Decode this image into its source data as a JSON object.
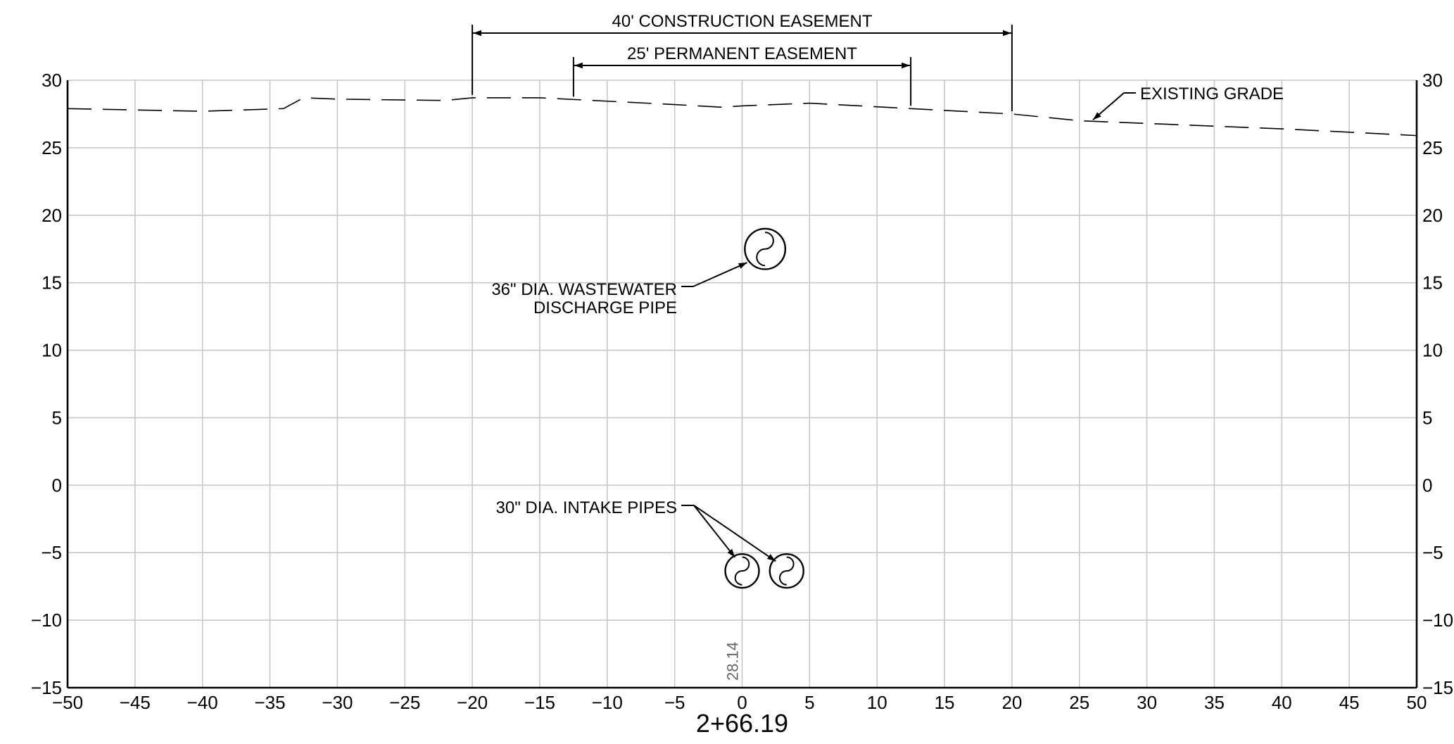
{
  "chart_data": {
    "type": "cross-section",
    "x_range": [
      -50,
      50
    ],
    "y_range": [
      -15,
      30
    ],
    "x_ticks": [
      "−50",
      "−45",
      "−40",
      "−35",
      "−30",
      "−25",
      "−20",
      "−15",
      "−10",
      "−5",
      "0",
      "5",
      "10",
      "15",
      "20",
      "25",
      "30",
      "35",
      "40",
      "45",
      "50"
    ],
    "y_ticks_left": [
      "30",
      "25",
      "20",
      "15",
      "10",
      "5",
      "0",
      "−5",
      "−10",
      "−15"
    ],
    "y_ticks_right": [
      "30",
      "25",
      "20",
      "15",
      "10",
      "5",
      "0",
      "−5",
      "−10",
      "−15"
    ],
    "station_label": "2+66.19",
    "centerline_elevation_label": "28.14",
    "existing_grade": {
      "label": "EXISTING GRADE",
      "points": [
        [
          -50,
          27.9
        ],
        [
          -40,
          27.7
        ],
        [
          -34,
          27.9
        ],
        [
          -32.5,
          28.7
        ],
        [
          -30,
          28.6
        ],
        [
          -22,
          28.5
        ],
        [
          -20,
          28.7
        ],
        [
          -15,
          28.7
        ],
        [
          -5,
          28.2
        ],
        [
          -1.5,
          28.0
        ],
        [
          0,
          28.1
        ],
        [
          5,
          28.3
        ],
        [
          12.5,
          27.9
        ],
        [
          20,
          27.5
        ],
        [
          25,
          27.0
        ],
        [
          30,
          26.8
        ],
        [
          40,
          26.4
        ],
        [
          50,
          25.9
        ]
      ]
    },
    "easements": [
      {
        "label": "40' CONSTRUCTION EASEMENT",
        "from": -20,
        "to": 20
      },
      {
        "label": "25' PERMANENT EASEMENT",
        "from": -12.5,
        "to": 12.5
      }
    ],
    "pipes": [
      {
        "group": "wastewater",
        "center": [
          1.7,
          17.5
        ],
        "diameter_ft": 3.0
      },
      {
        "group": "intake",
        "center": [
          0.0,
          -6.35
        ],
        "diameter_ft": 2.5
      },
      {
        "group": "intake",
        "center": [
          3.3,
          -6.35
        ],
        "diameter_ft": 2.5
      }
    ],
    "callouts": {
      "wastewater": [
        "36\" DIA. WASTEWATER",
        "DISCHARGE PIPE"
      ],
      "intake": [
        "30\" DIA. INTAKE PIPES"
      ]
    }
  }
}
